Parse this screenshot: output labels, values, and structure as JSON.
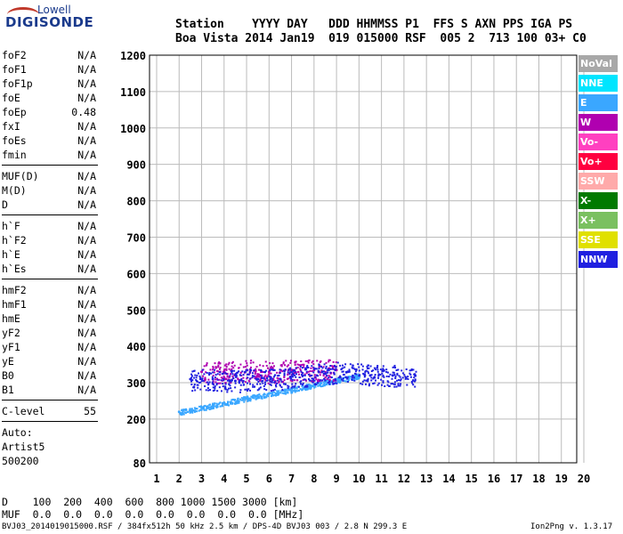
{
  "logo": {
    "line1": "Lowell",
    "line2": "DIGISONDE"
  },
  "header": {
    "labels": "Station    YYYY DAY   DDD HHMMSS P1  FFS S AXN PPS IGA PS",
    "values": "Boa Vista 2014 Jan19  019 015000 RSF  005 2  713 100 03+ C0"
  },
  "params": [
    [
      {
        "k": "foF2",
        "v": "N/A"
      },
      {
        "k": "foF1",
        "v": "N/A"
      },
      {
        "k": "foF1p",
        "v": "N/A"
      },
      {
        "k": "foE",
        "v": "N/A"
      },
      {
        "k": "foEp",
        "v": "0.48"
      },
      {
        "k": "fxI",
        "v": "N/A"
      },
      {
        "k": "foEs",
        "v": "N/A"
      },
      {
        "k": "fmin",
        "v": "N/A"
      }
    ],
    [
      {
        "k": "MUF(D)",
        "v": "N/A"
      },
      {
        "k": "M(D)",
        "v": "N/A"
      },
      {
        "k": "D",
        "v": "N/A"
      }
    ],
    [
      {
        "k": "h`F",
        "v": "N/A"
      },
      {
        "k": "h`F2",
        "v": "N/A"
      },
      {
        "k": "h`E",
        "v": "N/A"
      },
      {
        "k": "h`Es",
        "v": "N/A"
      }
    ],
    [
      {
        "k": "hmF2",
        "v": "N/A"
      },
      {
        "k": "hmF1",
        "v": "N/A"
      },
      {
        "k": "hmE",
        "v": "N/A"
      },
      {
        "k": "yF2",
        "v": "N/A"
      },
      {
        "k": "yF1",
        "v": "N/A"
      },
      {
        "k": "yE",
        "v": "N/A"
      },
      {
        "k": "B0",
        "v": "N/A"
      },
      {
        "k": "B1",
        "v": "N/A"
      }
    ],
    [
      {
        "k": "C-level",
        "v": "55"
      }
    ],
    [
      {
        "k": "Auto:",
        "v": ""
      },
      {
        "k": "Artist5",
        "v": ""
      },
      {
        "k": "500200",
        "v": ""
      }
    ]
  ],
  "legend": [
    {
      "label": "NoVal",
      "color": "#a8a8a8"
    },
    {
      "label": "NNE",
      "color": "#00e5ff"
    },
    {
      "label": "E",
      "color": "#3aa7ff"
    },
    {
      "label": "W",
      "color": "#b000b0"
    },
    {
      "label": "Vo-",
      "color": "#ff40c0"
    },
    {
      "label": "Vo+",
      "color": "#ff0040"
    },
    {
      "label": "SSW",
      "color": "#ffaaaa"
    },
    {
      "label": "X-",
      "color": "#007a00"
    },
    {
      "label": "X+",
      "color": "#7ac060"
    },
    {
      "label": "SSE",
      "color": "#e0e000"
    },
    {
      "label": "NNW",
      "color": "#2020e0"
    }
  ],
  "chart_data": {
    "type": "scatter",
    "xlabel": "",
    "ylabel": "",
    "xlim": [
      1,
      20
    ],
    "ylim": [
      80,
      1200
    ],
    "x_ticks": [
      1,
      2,
      3,
      4,
      5,
      6,
      7,
      8,
      9,
      10,
      11,
      12,
      13,
      14,
      15,
      16,
      17,
      18,
      19,
      20
    ],
    "y_ticks": [
      80,
      200,
      300,
      400,
      500,
      600,
      700,
      800,
      900,
      1000,
      1100,
      1200
    ],
    "grid": true,
    "traces": [
      {
        "name": "E",
        "x": [
          2.0,
          3.0,
          4.0,
          5.0,
          6.0,
          7.0,
          8.0,
          9.0,
          10.0
        ],
        "y": [
          220,
          232,
          245,
          258,
          270,
          282,
          295,
          308,
          320
        ]
      },
      {
        "name": "W",
        "x": [
          3.0,
          4.0,
          5.0,
          6.0,
          7.0,
          8.0,
          9.0
        ],
        "y": [
          330,
          330,
          335,
          330,
          335,
          335,
          335
        ]
      },
      {
        "name": "NNW",
        "x": [
          2.5,
          3.5,
          4.5,
          5.5,
          6.5,
          7.5,
          8.5,
          9.5,
          10.5,
          11.5,
          12.5
        ],
        "y": [
          310,
          310,
          305,
          310,
          310,
          320,
          325,
          330,
          320,
          320,
          320
        ]
      }
    ]
  },
  "bottom": {
    "d_row": "D    100  200  400  600  800 1000 1500 3000 [km]",
    "muf_row": "MUF  0.0  0.0  0.0  0.0  0.0  0.0  0.0  0.0 [MHz]"
  },
  "footer": {
    "left": "BVJ03_2014019015000.RSF / 384fx512h 50 kHz 2.5 km / DPS-4D BVJ03 003 / 2.8 N 299.3 E",
    "right": "Ion2Png v. 1.3.17"
  }
}
